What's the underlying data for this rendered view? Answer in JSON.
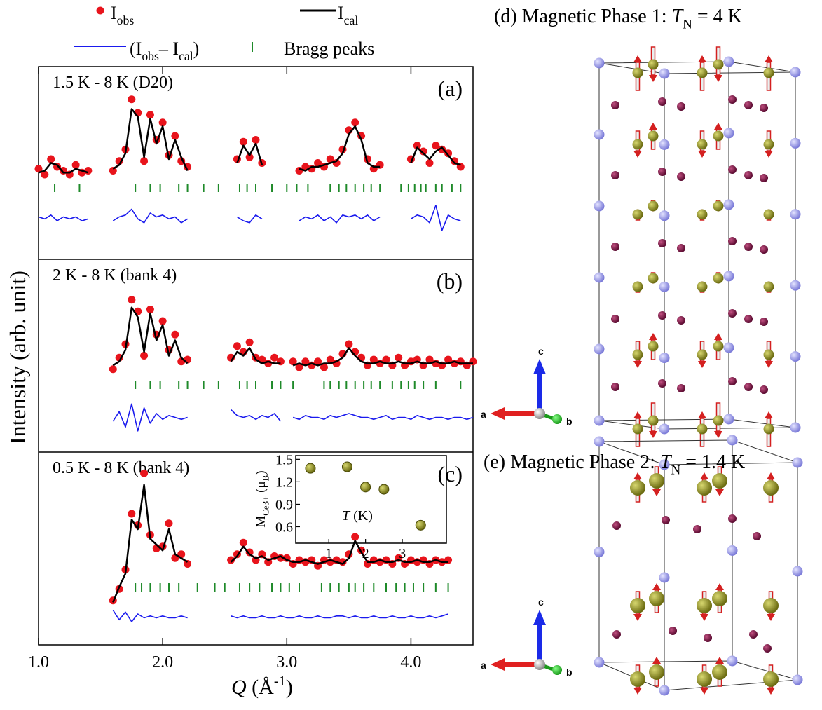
{
  "chart_data": {
    "type": "line",
    "y_label": "Intensity (arb. unit)",
    "x_label": [
      "Q",
      " (Å",
      "-1",
      ")"
    ],
    "xlim": [
      1.0,
      4.5
    ],
    "xticks": [
      {
        "value": 1,
        "label": "1.0"
      },
      {
        "value": 2,
        "label": "2.0"
      },
      {
        "value": 3,
        "label": "3.0"
      },
      {
        "value": 4,
        "label": "4.0"
      }
    ],
    "legend": [
      {
        "name": [
          "I",
          "obs"
        ],
        "color": "#e8141c"
      },
      {
        "name": [
          "I",
          "cal"
        ],
        "color": "#000000"
      },
      {
        "name": [
          "(I",
          "obs",
          "– I",
          "cal",
          ")"
        ],
        "color": "#1a1aee"
      },
      {
        "name": [
          "Bragg peaks"
        ],
        "color": "#1f8a2a"
      }
    ],
    "x": [
      1,
      1.05,
      1.1,
      1.15,
      1.2,
      1.25,
      1.3,
      1.35,
      1.4,
      1.45,
      1.5,
      1.55,
      1.6,
      1.65,
      1.7,
      1.75,
      1.8,
      1.85,
      1.9,
      1.95,
      2,
      2.05,
      2.1,
      2.15,
      2.2,
      2.25,
      2.3,
      2.35,
      2.4,
      2.45,
      2.5,
      2.55,
      2.6,
      2.65,
      2.7,
      2.75,
      2.8,
      2.85,
      2.9,
      2.95,
      3,
      3.05,
      3.1,
      3.15,
      3.2,
      3.25,
      3.3,
      3.35,
      3.4,
      3.45,
      3.5,
      3.55,
      3.6,
      3.65,
      3.7,
      3.75,
      3.8,
      3.85,
      3.9,
      3.95,
      4,
      4.05,
      4.1,
      4.15,
      4.2,
      4.25,
      4.3,
      4.35,
      4.4,
      4.45,
      4.5
    ],
    "panels": [
      {
        "label": "(a)",
        "note": "1.5 K - 8 K (D20)",
        "ylim": [
          0,
          10
        ],
        "series": [
          {
            "values": [
              4.7,
              4.4,
              5.2,
              4.8,
              4.6,
              4.4,
              4.9,
              4.5,
              4.6,
              null,
              null,
              null,
              4.6,
              5.1,
              5.7,
              8.3,
              7.6,
              5.1,
              7.5,
              6.2,
              7.1,
              5.4,
              6.4,
              5.1,
              4.8,
              null,
              null,
              null,
              null,
              null,
              null,
              null,
              5.2,
              6.1,
              5.3,
              6.2,
              5.0,
              null,
              null,
              null,
              null,
              null,
              4.6,
              4.8,
              4.7,
              5.0,
              4.8,
              5.2,
              5.0,
              5.7,
              6.7,
              7.1,
              6.4,
              5.2,
              4.7,
              4.9,
              null,
              null,
              null,
              null,
              5.2,
              5.9,
              5.6,
              5.0,
              5.9,
              5.7,
              5.5,
              5.1,
              4.8,
              null,
              null
            ]
          },
          {
            "values": [
              4.5,
              4.6,
              5.0,
              4.9,
              4.5,
              4.5,
              4.7,
              4.6,
              4.5,
              null,
              null,
              null,
              4.7,
              4.9,
              5.5,
              7.8,
              7.4,
              5.3,
              7.3,
              6.0,
              6.9,
              5.2,
              6.2,
              5.3,
              4.6,
              null,
              null,
              null,
              null,
              null,
              null,
              null,
              5.0,
              5.9,
              5.4,
              6.0,
              4.9,
              null,
              null,
              null,
              null,
              null,
              4.7,
              4.6,
              4.8,
              4.8,
              4.9,
              5.0,
              5.1,
              5.5,
              6.5,
              6.9,
              6.2,
              5.0,
              4.8,
              4.8,
              null,
              null,
              null,
              null,
              5.0,
              5.8,
              5.5,
              5.2,
              5.6,
              5.8,
              5.4,
              5.0,
              4.9,
              null,
              null
            ]
          },
          {
            "values": [
              2.2,
              2.1,
              2.3,
              2.0,
              2.2,
              2.1,
              2.2,
              2.0,
              2.1,
              null,
              null,
              null,
              2.0,
              2.2,
              2.3,
              2.6,
              2.1,
              1.9,
              2.4,
              2.2,
              2.3,
              2.1,
              2.2,
              1.9,
              2.1,
              null,
              null,
              null,
              null,
              null,
              null,
              null,
              2.2,
              2.0,
              1.9,
              2.3,
              2.1,
              null,
              null,
              null,
              null,
              null,
              2.0,
              2.2,
              2.1,
              2.3,
              2.0,
              2.2,
              1.9,
              2.3,
              2.2,
              2.3,
              2.1,
              2.3,
              2.0,
              2.2,
              null,
              null,
              null,
              null,
              2.1,
              2.3,
              2.2,
              1.9,
              2.8,
              1.5,
              2.3,
              2.1,
              2.0,
              null,
              null
            ]
          }
        ],
        "bragg": [
          1.13,
          1.33,
          1.78,
          1.9,
          1.98,
          2.13,
          2.2,
          2.33,
          2.45,
          2.62,
          2.68,
          2.75,
          2.88,
          3.0,
          3.08,
          3.17,
          3.35,
          3.42,
          3.48,
          3.55,
          3.62,
          3.68,
          3.75,
          3.92,
          3.98,
          4.03,
          4.08,
          4.12,
          4.2,
          4.25,
          4.33,
          4.4
        ]
      },
      {
        "label": "(b)",
        "note": "2 K  - 8 K (bank 4)",
        "ylim": [
          0,
          10
        ],
        "series": [
          {
            "values": [
              null,
              null,
              null,
              null,
              null,
              null,
              null,
              null,
              null,
              null,
              null,
              null,
              4.3,
              4.9,
              5.6,
              7.9,
              7.3,
              5.0,
              7.4,
              6.1,
              6.8,
              5.3,
              6.1,
              4.7,
              4.8,
              null,
              null,
              null,
              null,
              null,
              null,
              4.9,
              5.5,
              5.2,
              5.7,
              4.9,
              4.8,
              4.6,
              4.9,
              4.7,
              null,
              4.7,
              4.4,
              4.7,
              4.5,
              4.7,
              4.4,
              4.8,
              4.6,
              5.1,
              5.6,
              5.2,
              4.9,
              4.5,
              4.8,
              4.6,
              4.8,
              4.5,
              4.9,
              4.5,
              4.7,
              4.8,
              4.5,
              4.8,
              4.6,
              4.5,
              4.8,
              4.6,
              4.7,
              4.5,
              4.7
            ]
          },
          {
            "values": [
              null,
              null,
              null,
              null,
              null,
              null,
              null,
              null,
              null,
              null,
              null,
              null,
              4.5,
              4.7,
              5.3,
              7.5,
              7.0,
              5.2,
              7.2,
              5.8,
              6.6,
              5.0,
              5.8,
              4.9,
              4.6,
              null,
              null,
              null,
              null,
              null,
              null,
              4.7,
              5.2,
              5.0,
              5.4,
              4.8,
              4.6,
              4.7,
              4.6,
              4.6,
              null,
              4.5,
              4.6,
              4.5,
              4.6,
              4.5,
              4.6,
              4.6,
              4.7,
              4.9,
              5.4,
              5.0,
              4.7,
              4.6,
              4.6,
              4.7,
              4.6,
              4.6,
              4.7,
              4.6,
              4.6,
              4.7,
              4.6,
              4.6,
              4.7,
              4.6,
              4.6,
              4.7,
              4.6,
              4.6,
              4.6
            ]
          },
          {
            "values": [
              null,
              null,
              null,
              null,
              null,
              null,
              null,
              null,
              null,
              null,
              null,
              null,
              1.6,
              2.1,
              1.3,
              2.5,
              1.1,
              2.3,
              1.5,
              2.0,
              1.7,
              1.9,
              1.8,
              1.7,
              1.8,
              null,
              null,
              null,
              null,
              null,
              null,
              2.2,
              1.9,
              1.8,
              1.9,
              1.7,
              1.9,
              1.8,
              2.0,
              1.6,
              null,
              1.8,
              1.7,
              1.9,
              1.8,
              1.8,
              1.7,
              1.9,
              1.8,
              1.9,
              2.0,
              1.9,
              1.8,
              1.8,
              1.7,
              1.8,
              1.9,
              1.7,
              1.8,
              1.8,
              1.7,
              1.9,
              1.8,
              1.7,
              1.8,
              1.8,
              1.7,
              1.8,
              1.8,
              1.7,
              1.8
            ]
          }
        ],
        "bragg": [
          1.78,
          1.9,
          1.98,
          2.13,
          2.2,
          2.33,
          2.45,
          2.62,
          2.68,
          2.75,
          2.88,
          2.95,
          3.05,
          3.3,
          3.35,
          3.42,
          3.48,
          3.55,
          3.62,
          3.68,
          3.75,
          3.85,
          3.92,
          3.98,
          4.03,
          4.1,
          4.2,
          4.4
        ]
      },
      {
        "label": "(c)",
        "note": "0.5 K  - 8 K (bank 4)",
        "ylim": [
          0,
          10
        ],
        "series": [
          {
            "values": [
              null,
              null,
              null,
              null,
              null,
              null,
              null,
              null,
              null,
              null,
              null,
              null,
              2.3,
              2.9,
              3.9,
              6.8,
              6.2,
              8.9,
              5.7,
              5.0,
              5.1,
              6.3,
              4.5,
              4.7,
              4.2,
              null,
              null,
              null,
              null,
              null,
              null,
              4.4,
              4.7,
              5.3,
              4.8,
              4.4,
              4.7,
              4.3,
              4.6,
              4.5,
              4.5,
              4.2,
              4.4,
              4.3,
              4.4,
              4.1,
              4.4,
              4.3,
              4.4,
              4.3,
              4.7,
              5.6,
              4.9,
              4.2,
              4.4,
              4.3,
              4.4,
              4.2,
              4.5,
              4.2,
              4.4,
              4.3,
              4.4,
              4.2,
              4.4,
              4.3,
              4.4,
              null,
              null,
              null,
              null
            ]
          },
          {
            "values": [
              null,
              null,
              null,
              null,
              null,
              null,
              null,
              null,
              null,
              null,
              null,
              null,
              2.2,
              3.0,
              3.7,
              6.5,
              6.0,
              8.3,
              5.5,
              5.2,
              4.9,
              6.0,
              4.7,
              4.5,
              4.3,
              null,
              null,
              null,
              null,
              null,
              null,
              4.3,
              4.6,
              5.1,
              4.7,
              4.5,
              4.6,
              4.4,
              4.5,
              4.6,
              4.4,
              4.3,
              4.3,
              4.4,
              4.3,
              4.2,
              4.3,
              4.4,
              4.3,
              4.2,
              4.5,
              5.4,
              4.8,
              4.3,
              4.3,
              4.4,
              4.3,
              4.3,
              4.4,
              4.3,
              4.3,
              4.4,
              4.3,
              4.3,
              4.4,
              4.3,
              4.3,
              null,
              null,
              null,
              null
            ]
          },
          {
            "values": [
              null,
              null,
              null,
              null,
              null,
              null,
              null,
              null,
              null,
              null,
              null,
              null,
              1.8,
              1.3,
              1.7,
              1.2,
              1.6,
              1.4,
              1.5,
              1.4,
              1.5,
              1.4,
              1.4,
              1.5,
              1.4,
              null,
              null,
              null,
              null,
              null,
              null,
              1.5,
              1.4,
              1.5,
              1.4,
              1.4,
              1.5,
              1.4,
              1.4,
              1.5,
              1.4,
              1.4,
              1.5,
              1.4,
              1.4,
              1.5,
              1.4,
              1.4,
              1.5,
              1.5,
              1.4,
              1.5,
              1.4,
              1.4,
              1.5,
              1.4,
              1.4,
              1.5,
              1.4,
              1.4,
              1.5,
              1.4,
              1.4,
              1.5,
              1.4,
              1.5,
              1.6,
              null,
              null,
              null,
              null
            ]
          }
        ],
        "bragg": [
          1.78,
          1.83,
          1.9,
          1.98,
          2.05,
          2.13,
          2.28,
          2.42,
          2.5,
          2.62,
          2.7,
          2.78,
          2.88,
          2.95,
          3.02,
          3.1,
          3.28,
          3.35,
          3.42,
          3.5,
          3.55,
          3.62,
          3.7,
          3.8,
          3.88,
          3.95,
          4.02,
          4.1,
          4.2,
          4.3
        ]
      }
    ],
    "inset": {
      "type": "scatter",
      "color": "#8c8c1c",
      "x": [
        0.5,
        1.5,
        2.0,
        2.5,
        3.5
      ],
      "y": [
        1.38,
        1.4,
        1.13,
        1.1,
        0.62
      ],
      "xlim": [
        0.1,
        4.2
      ],
      "ylim": [
        0.38,
        1.55
      ],
      "xticks": [
        1,
        2,
        3
      ],
      "yticks": [
        0.6,
        0.9,
        1.2,
        1.5
      ],
      "x_label": [
        "T",
        " (K)"
      ],
      "y_label": [
        "M",
        "Ce3+",
        " (μ",
        "B",
        ")"
      ]
    },
    "structures": [
      {
        "title": [
          "(d) Magnetic Phase 1:  ",
          "T",
          "N",
          " = 4 K"
        ],
        "axes": [
          "c",
          "a",
          "b"
        ]
      },
      {
        "title": [
          "(e) Magnetic Phase 2:  ",
          "T",
          "N",
          " = 1.4 K"
        ],
        "axes": [
          "c",
          "a",
          "b"
        ]
      }
    ]
  }
}
